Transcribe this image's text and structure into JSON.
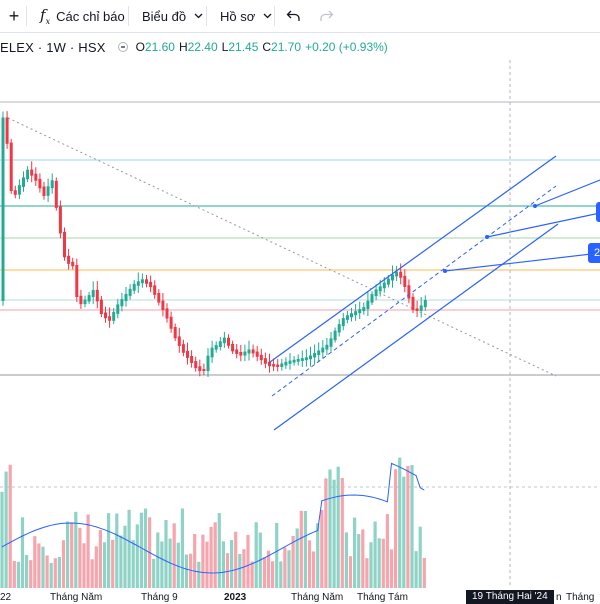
{
  "toolbar": {
    "plus_label": "+",
    "indicators_label": "Các chỉ báo",
    "chart_type_label": "Biểu đồ",
    "profile_label": "Hồ sơ"
  },
  "legend": {
    "symbol": "ELEX · 1W · HSX",
    "o_label": "O",
    "o_value": "21.60",
    "h_label": "H",
    "h_value": "22.40",
    "l_label": "L",
    "l_value": "21.45",
    "c_label": "C",
    "c_value": "21.70",
    "change": "+0.20 (+0.93%)"
  },
  "xaxis": {
    "labels": [
      "22",
      "Tháng Năm",
      "Tháng 9",
      "2023",
      "Tháng Năm",
      "Tháng Tám",
      "Tháng"
    ],
    "crosshair_date": "19 Tháng Hai '24",
    "edge_label": "n"
  },
  "price_tags": [
    "2"
  ],
  "colors": {
    "up": "#22ab94",
    "down": "#f23645",
    "channel": "#2962ff"
  },
  "chart_data": {
    "type": "candlestick",
    "symbol": "ELEX",
    "interval": "1W",
    "exchange": "HSX",
    "last_bar": {
      "open": 21.6,
      "high": 22.4,
      "low": 21.45,
      "close": 21.7,
      "change": 0.2,
      "change_pct": 0.93
    }
  }
}
